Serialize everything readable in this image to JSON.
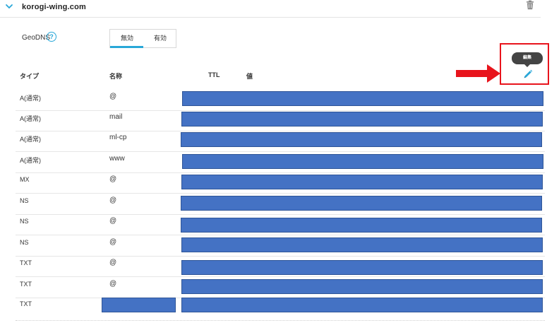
{
  "domain": {
    "title": "korogi-wing.com",
    "chevron_icon": "chevron-down-icon",
    "delete_icon": "trash-icon"
  },
  "geodns": {
    "label": "GeoDNS",
    "help_icon": "question-circle-icon",
    "help_glyph": "?",
    "options": [
      "無効",
      "有効"
    ],
    "selected": "無効"
  },
  "columns": {
    "type": "タイプ",
    "name": "名称",
    "ttl": "TTL",
    "value": "値"
  },
  "edit": {
    "tooltip": "編集",
    "icon": "pencil-icon"
  },
  "colors": {
    "accent": "#29a7d8",
    "redaction": "#4472c4",
    "annotation": "#e8141c"
  },
  "records": [
    {
      "type": "A(通常)",
      "name": "@"
    },
    {
      "type": "A(通常)",
      "name": "mail"
    },
    {
      "type": "A(通常)",
      "name": "ml-cp"
    },
    {
      "type": "A(通常)",
      "name": "www"
    },
    {
      "type": "MX",
      "name": "@"
    },
    {
      "type": "NS",
      "name": "@"
    },
    {
      "type": "NS",
      "name": "@"
    },
    {
      "type": "NS",
      "name": "@"
    },
    {
      "type": "TXT",
      "name": "@"
    },
    {
      "type": "TXT",
      "name": "@"
    },
    {
      "type": "TXT",
      "name": ""
    }
  ]
}
